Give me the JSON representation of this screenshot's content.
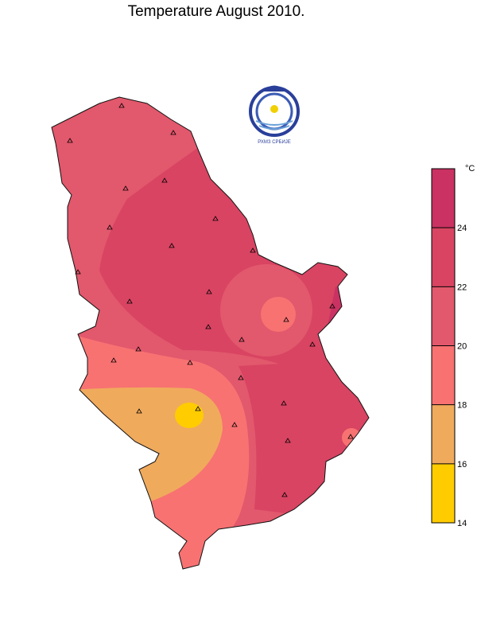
{
  "header": {
    "title": "Temperature  August  2010."
  },
  "logo": {
    "text": "РХМЗ  СРБИЈЕ"
  },
  "colorbar": {
    "unit": "°C",
    "lim": [
      14,
      26
    ],
    "ticks": [
      14,
      16,
      18,
      20,
      22,
      24
    ],
    "colors": [
      "#ffcc00",
      "#f0aa5c",
      "#f87272",
      "#e2586c",
      "#d84462",
      "#c93262"
    ]
  }
}
